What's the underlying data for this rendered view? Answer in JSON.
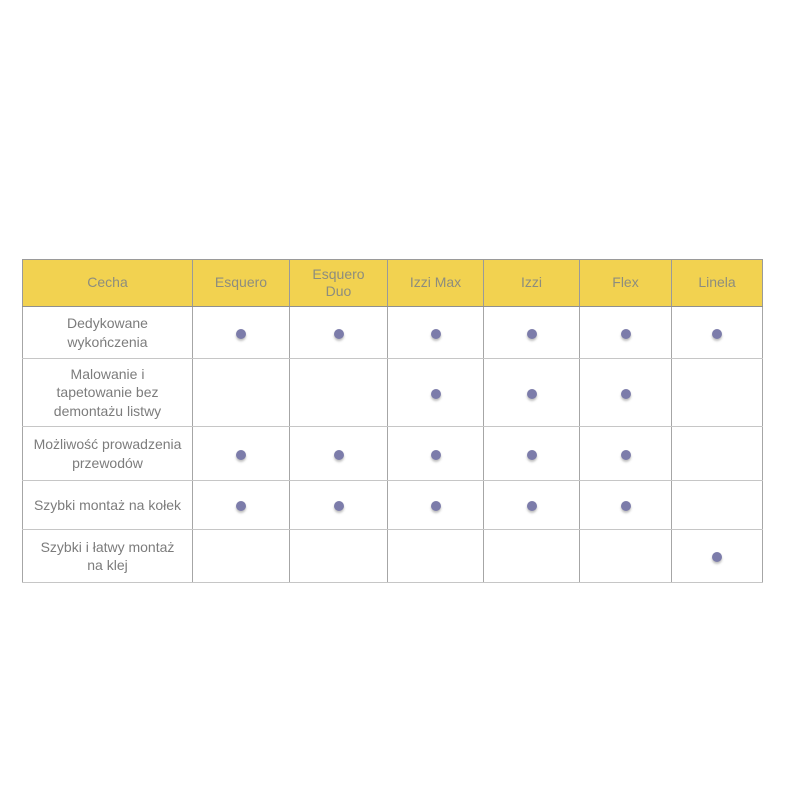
{
  "chart_data": {
    "type": "table",
    "title": "",
    "columns": [
      "Cecha",
      "Esquero",
      "Esquero\nDuo",
      "Izzi Max",
      "Izzi",
      "Flex",
      "Linela"
    ],
    "rows": [
      {
        "feature": "Dedykowane wykończenia",
        "values": [
          true,
          true,
          true,
          true,
          true,
          true
        ]
      },
      {
        "feature": "Malowanie i tapetowanie bez demontażu listwy",
        "values": [
          false,
          false,
          true,
          true,
          true,
          false
        ]
      },
      {
        "feature": "Możliwość prowadzenia przewodów",
        "values": [
          true,
          true,
          true,
          true,
          true,
          false
        ]
      },
      {
        "feature": "Szybki montaż na kołek",
        "values": [
          true,
          true,
          true,
          true,
          true,
          false
        ]
      },
      {
        "feature": "Szybki i łatwy montaż na klej",
        "values": [
          false,
          false,
          false,
          false,
          false,
          true
        ]
      }
    ],
    "legend": "dot = feature available",
    "colors": {
      "header_background": "#f2d250",
      "header_text": "#8d8d7e",
      "body_text": "#7c7c7c",
      "dot": "#7c7caa",
      "border_outer": "#9a9a9a",
      "border_inner": "#c6c6c6"
    }
  }
}
